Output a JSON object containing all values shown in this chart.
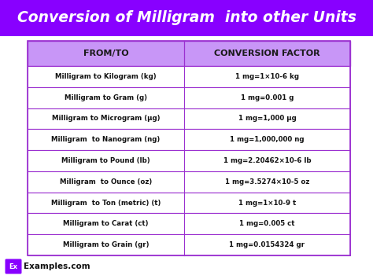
{
  "title": "Conversion of Milligram  into other Units",
  "title_bg": "#8800FF",
  "title_color": "#FFFFFF",
  "header_bg": "#C896F7",
  "header_color": "#1a1a1a",
  "border_color": "#9B30D0",
  "col1_header": "FROM/TO",
  "col2_header": "CONVERSION FACTOR",
  "rows": [
    [
      "Milligram to Kilogram (kg)",
      "1 mg=1×10-6 kg"
    ],
    [
      "Milligram to Gram (g)",
      "1 mg=0.001 g"
    ],
    [
      "Milligram to Microgram (µg)",
      "1 mg=1,000 µg"
    ],
    [
      "Milligram  to Nanogram (ng)",
      "1 mg=1,000,000 ng"
    ],
    [
      "Milligram to Pound (lb)",
      "1 mg=2.20462×10-6 lb"
    ],
    [
      "Milligram  to Ounce (oz)",
      "1 mg=3.5274×10-5 oz"
    ],
    [
      "Milligram  to Ton (metric) (t)",
      "1 mg=1×10-9 t"
    ],
    [
      "Milligram to Carat (ct)",
      "1 mg=0.005 ct"
    ],
    [
      "Milligram to Grain (gr)",
      "1 mg=0.0154324 gr"
    ]
  ],
  "footer_text": "Examples.com",
  "footer_bg": "#8800FF",
  "fig_bg": "#FFFFFF",
  "table_bg": "#FFFFFF"
}
